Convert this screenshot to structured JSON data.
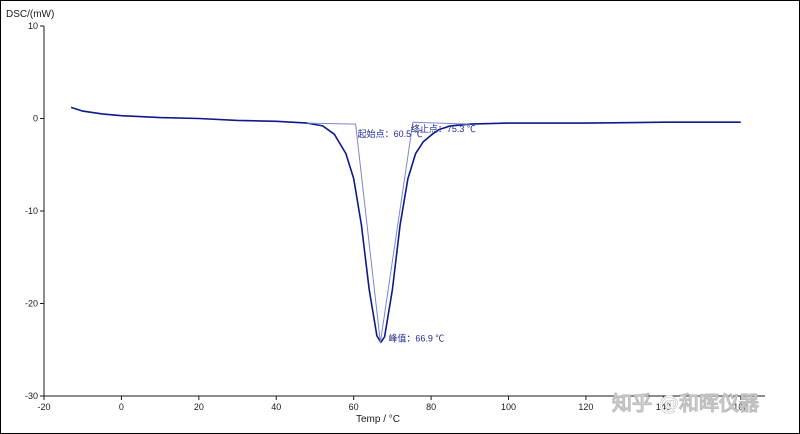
{
  "chart_data": {
    "type": "line",
    "title": "",
    "ylabel": "DSC/(mW)",
    "xlabel": "Temp / °C",
    "xlim": [
      -20,
      166
    ],
    "ylim": [
      -30,
      10
    ],
    "x_ticks": [
      -20,
      0,
      20,
      40,
      60,
      80,
      100,
      120,
      140,
      160
    ],
    "y_ticks": [
      10,
      0,
      -10,
      -20,
      -30
    ],
    "grid": false,
    "series": [
      {
        "color": "#0c1a8c",
        "x": [
          -13,
          -10,
          -5,
          0,
          10,
          20,
          30,
          40,
          48,
          52,
          55,
          58,
          60,
          62,
          64,
          66,
          67,
          68,
          70,
          72,
          74,
          76,
          78,
          80,
          82,
          85,
          90,
          100,
          120,
          140,
          160
        ],
        "y": [
          1.2,
          0.8,
          0.5,
          0.3,
          0.1,
          0,
          -0.2,
          -0.3,
          -0.5,
          -0.8,
          -1.7,
          -3.8,
          -6.5,
          -11.5,
          -18.5,
          -23.5,
          -24.2,
          -23.6,
          -18.5,
          -11.5,
          -6.5,
          -3.8,
          -2.5,
          -1.8,
          -1.2,
          -0.8,
          -0.6,
          -0.5,
          -0.5,
          -0.4,
          -0.4
        ]
      },
      {
        "color": "#7d86c8",
        "x": [
          48,
          60.5,
          66.9,
          75.3,
          90
        ],
        "y": [
          -0.5,
          -0.6,
          -24.2,
          -0.4,
          -0.6
        ]
      }
    ],
    "annotations": [
      {
        "text": "起始点：60.5 ℃",
        "x": 60.5,
        "y": -0.6
      },
      {
        "text": "终止点：75.3 ℃",
        "x": 75.3,
        "y": -0.4
      },
      {
        "text": "峰值：66.9 ℃",
        "x": 66.9,
        "y": -24.2
      }
    ]
  },
  "watermark": "知乎 @和晖仪器"
}
